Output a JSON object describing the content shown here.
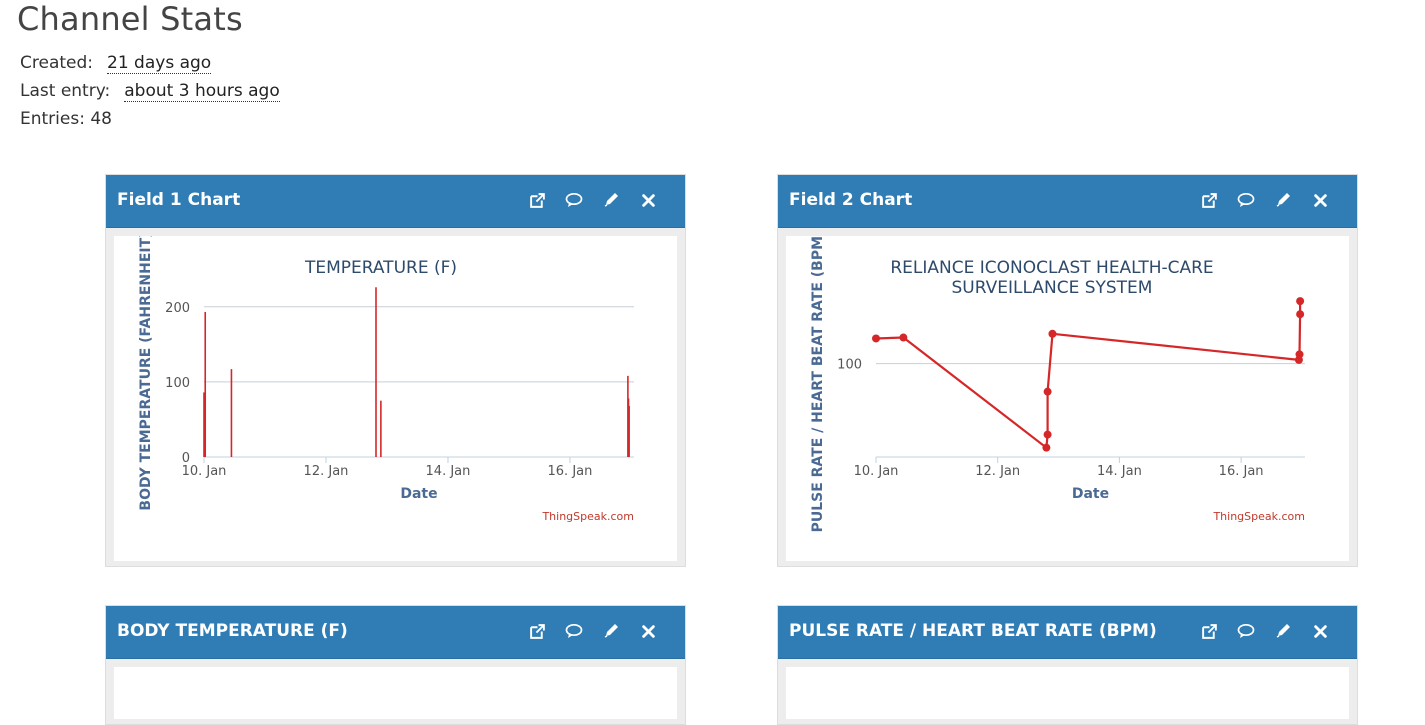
{
  "page": {
    "title": "Channel Stats",
    "created_label": "Created:",
    "created_value": "21 days ago",
    "last_entry_label": "Last entry:",
    "last_entry_value": "about 3 hours ago",
    "entries_text": "Entries: 48"
  },
  "panels": [
    {
      "title": "Field 1 Chart"
    },
    {
      "title": "Field 2 Chart"
    },
    {
      "title": "BODY TEMPERATURE (F)"
    },
    {
      "title": "PULSE RATE / HEART BEAT RATE (BPM)"
    }
  ],
  "icons": [
    "external-link-icon",
    "comment-icon",
    "pencil-icon",
    "close-icon"
  ],
  "colors": {
    "header": "#2f7db4",
    "series": "#d62728",
    "credit": "#c0392b"
  },
  "chart_data": [
    {
      "type": "bar",
      "title": "TEMPERATURE (F)",
      "xlabel": "Date",
      "ylabel": "BODY TEMPERATURE (FAHRENHEIT)",
      "credit": "ThingSpeak.com",
      "xlim": [
        10.0,
        17.05
      ],
      "ylim": [
        0,
        225
      ],
      "yticks": [
        0,
        100,
        200
      ],
      "xticks": [
        {
          "v": 10,
          "label": "10. Jan"
        },
        {
          "v": 12,
          "label": "12. Jan"
        },
        {
          "v": 14,
          "label": "14. Jan"
        },
        {
          "v": 16,
          "label": "16. Jan"
        }
      ],
      "grid": true,
      "points": [
        {
          "x": 10.0,
          "y": 86
        },
        {
          "x": 10.02,
          "y": 193
        },
        {
          "x": 10.45,
          "y": 117
        },
        {
          "x": 12.82,
          "y": 226
        },
        {
          "x": 12.9,
          "y": 75
        },
        {
          "x": 16.95,
          "y": 108
        },
        {
          "x": 16.96,
          "y": 78
        },
        {
          "x": 16.97,
          "y": 68
        }
      ]
    },
    {
      "type": "line",
      "title": [
        "RELIANCE ICONOCLAST HEALTH-CARE",
        "SURVEILLANCE SYSTEM"
      ],
      "xlabel": "Date",
      "ylabel": "PULSE RATE / HEART BEAT RATE (BPM)",
      "credit": "ThingSpeak.com",
      "xlim": [
        10.0,
        17.05
      ],
      "ylim": [
        0,
        180
      ],
      "yticks": [
        100
      ],
      "xticks": [
        {
          "v": 10,
          "label": "10. Jan"
        },
        {
          "v": 12,
          "label": "12. Jan"
        },
        {
          "v": 14,
          "label": "14. Jan"
        },
        {
          "v": 16,
          "label": "16. Jan"
        }
      ],
      "grid": true,
      "points": [
        {
          "x": 10.0,
          "y": 127
        },
        {
          "x": 10.45,
          "y": 128
        },
        {
          "x": 12.8,
          "y": 10
        },
        {
          "x": 12.82,
          "y": 24
        },
        {
          "x": 12.82,
          "y": 70
        },
        {
          "x": 12.9,
          "y": 132
        },
        {
          "x": 16.95,
          "y": 104
        },
        {
          "x": 16.96,
          "y": 110
        },
        {
          "x": 16.97,
          "y": 153
        },
        {
          "x": 16.97,
          "y": 167
        }
      ]
    }
  ]
}
